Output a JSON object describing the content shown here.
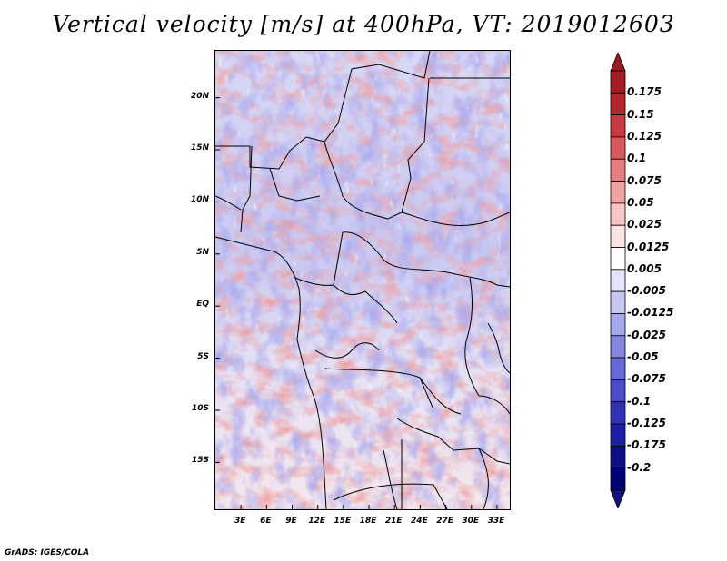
{
  "title": "Vertical velocity [m/s] at 400hPa, VT: 2019012603",
  "credit": "GrADS: IGES/COLA",
  "map": {
    "lat_labels": [
      "20N",
      "15N",
      "10N",
      "5N",
      "EQ",
      "5S",
      "10S",
      "15S"
    ],
    "lat_values": [
      20,
      15,
      10,
      5,
      0,
      -5,
      -10,
      -15
    ],
    "lon_labels": [
      "3E",
      "6E",
      "9E",
      "12E",
      "15E",
      "18E",
      "21E",
      "24E",
      "27E",
      "30E",
      "33E"
    ],
    "lon_values": [
      3,
      6,
      9,
      12,
      15,
      18,
      21,
      24,
      27,
      30,
      33
    ],
    "lon_range": [
      0,
      34.5
    ],
    "lat_range": [
      -19.5,
      24.5
    ]
  },
  "colorbar": {
    "labels": [
      "0.175",
      "0.15",
      "0.125",
      "0.1",
      "0.075",
      "0.05",
      "0.025",
      "0.0125",
      "0.005",
      "-0.005",
      "-0.0125",
      "-0.025",
      "-0.05",
      "-0.075",
      "-0.1",
      "-0.125",
      "-0.175",
      "-0.2"
    ],
    "colors": [
      "#a11d22",
      "#b5262b",
      "#c93a3e",
      "#d85a5c",
      "#e57f7f",
      "#efa3a3",
      "#f6c6c6",
      "#fbe1e1",
      "#ffffff",
      "#e3e3fb",
      "#c7c7f4",
      "#a6a6ec",
      "#8686e2",
      "#6767d8",
      "#4a4acb",
      "#3232b8",
      "#1f1fa3",
      "#0e0e8a",
      "#000070"
    ],
    "top_color": "#9c1a1f",
    "bottom_color": "#14127e"
  },
  "colors": {
    "land_boundary": "#000000"
  }
}
